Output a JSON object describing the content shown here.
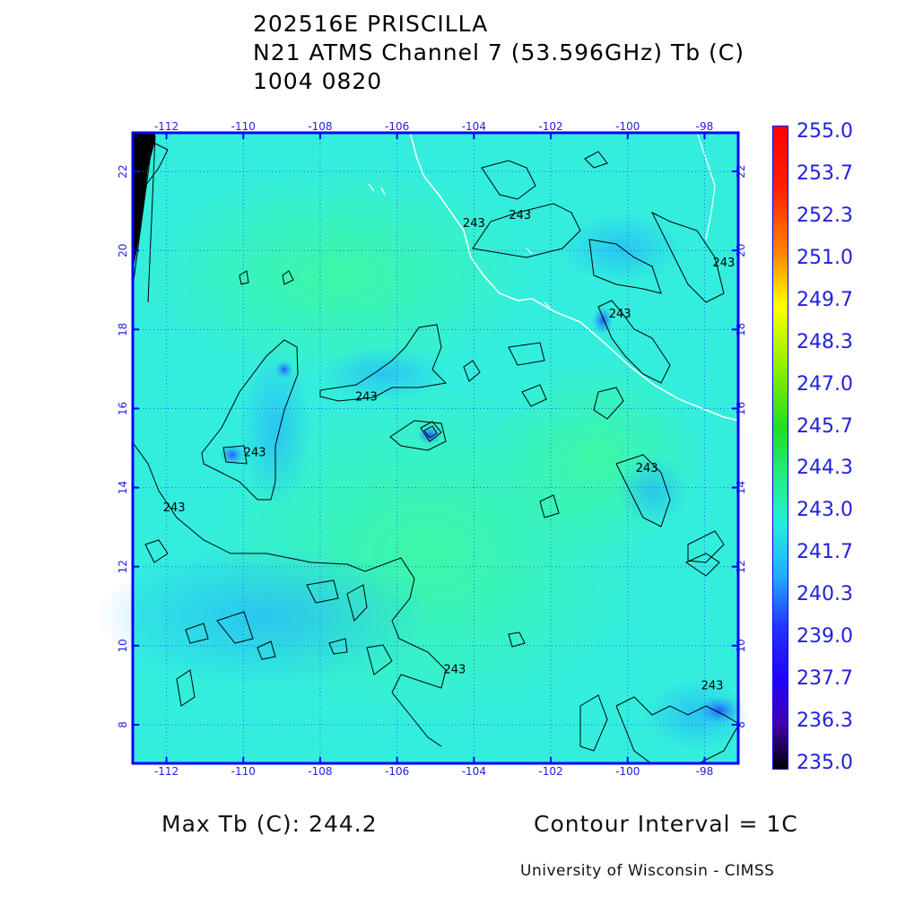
{
  "title": {
    "line1": "202516E PRISCILLA",
    "line2": "N21 ATMS Channel 7 (53.596GHz) Tb (C)",
    "line3": "1004 0820"
  },
  "map": {
    "lon_ticks": [
      "-112",
      "-110",
      "-108",
      "-106",
      "-104",
      "-102",
      "-100",
      "-98"
    ],
    "lat_ticks": [
      "22",
      "20",
      "18",
      "16",
      "14",
      "12",
      "10",
      "8"
    ],
    "lon_range": [
      -112.9,
      -97.1
    ],
    "lat_range": [
      7.0,
      23.0
    ],
    "background_color": "#33eedd",
    "grid_color": "#2266ff",
    "frame_color": "#0000ff",
    "coast_color": "#ffffff",
    "contour_color": "#000000",
    "contour_labels": [
      {
        "text": "243",
        "lon": -109.7,
        "lat": 14.8
      },
      {
        "text": "243",
        "lon": -111.8,
        "lat": 13.4
      },
      {
        "text": "243",
        "lon": -106.8,
        "lat": 16.2
      },
      {
        "text": "243",
        "lon": -104.5,
        "lat": 9.3
      },
      {
        "text": "243",
        "lon": -100.2,
        "lat": 18.3
      },
      {
        "text": "243",
        "lon": -99.5,
        "lat": 14.4
      },
      {
        "text": "243",
        "lon": -97.8,
        "lat": 8.9
      },
      {
        "text": "243",
        "lon": -97.5,
        "lat": 19.6
      },
      {
        "text": "243",
        "lon": -102.8,
        "lat": 20.8
      },
      {
        "text": "243",
        "lon": -104.0,
        "lat": 20.6
      }
    ]
  },
  "colorbar": {
    "labels": [
      "255.0",
      "253.7",
      "252.3",
      "251.0",
      "249.7",
      "248.3",
      "247.0",
      "245.7",
      "244.3",
      "243.0",
      "241.7",
      "240.3",
      "239.0",
      "237.7",
      "236.3",
      "235.0"
    ],
    "min": 235.0,
    "max": 255.0
  },
  "footer": {
    "max_tb": "Max Tb (C): 244.2",
    "contour_interval": "Contour Interval = 1C",
    "credit": "University of Wisconsin - CIMSS"
  }
}
